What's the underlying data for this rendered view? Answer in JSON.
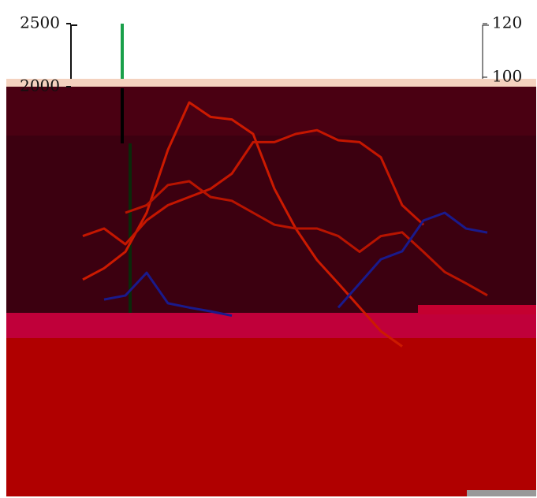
{
  "chart_data": {
    "type": "line",
    "categories": [
      null,
      null,
      null,
      null,
      null,
      null,
      null,
      null,
      null,
      null,
      null,
      null,
      null,
      null,
      null,
      null,
      null,
      null,
      null,
      null
    ],
    "series": [
      {
        "color": "#cc1a00",
        "values": [
          470,
          560,
          690,
          1000,
          1500,
          1875,
          1760,
          1740,
          1625,
          1190,
          875,
          625,
          440,
          250,
          60,
          -60,
          null,
          null,
          null,
          null
        ]
      },
      {
        "color": "#c41600",
        "values": [
          815,
          875,
          750,
          940,
          1060,
          1125,
          1190,
          1310,
          1560,
          1560,
          1625,
          1655,
          1575,
          1560,
          1440,
          1060,
          905,
          null,
          null,
          null
        ]
      },
      {
        "color": "#b81400",
        "values": [
          null,
          null,
          1000,
          1060,
          1220,
          1250,
          1125,
          1095,
          1000,
          905,
          875,
          875,
          815,
          690,
          815,
          845,
          690,
          530,
          440,
          345
        ]
      },
      {
        "color": "#1a1a8c",
        "axis": "y2",
        "values": [
          null,
          17,
          18.5,
          27,
          15.6,
          14,
          12.6,
          11,
          null,
          null,
          null,
          null,
          14,
          23,
          32,
          35,
          46.5,
          49.4,
          43.5,
          42
        ]
      }
    ],
    "ylim": [
      -1250,
      2500
    ],
    "yticks": [
      2000,
      2500
    ],
    "y2lim": [
      -56.5,
      120
    ],
    "y2ticks": [
      100,
      120
    ]
  }
}
